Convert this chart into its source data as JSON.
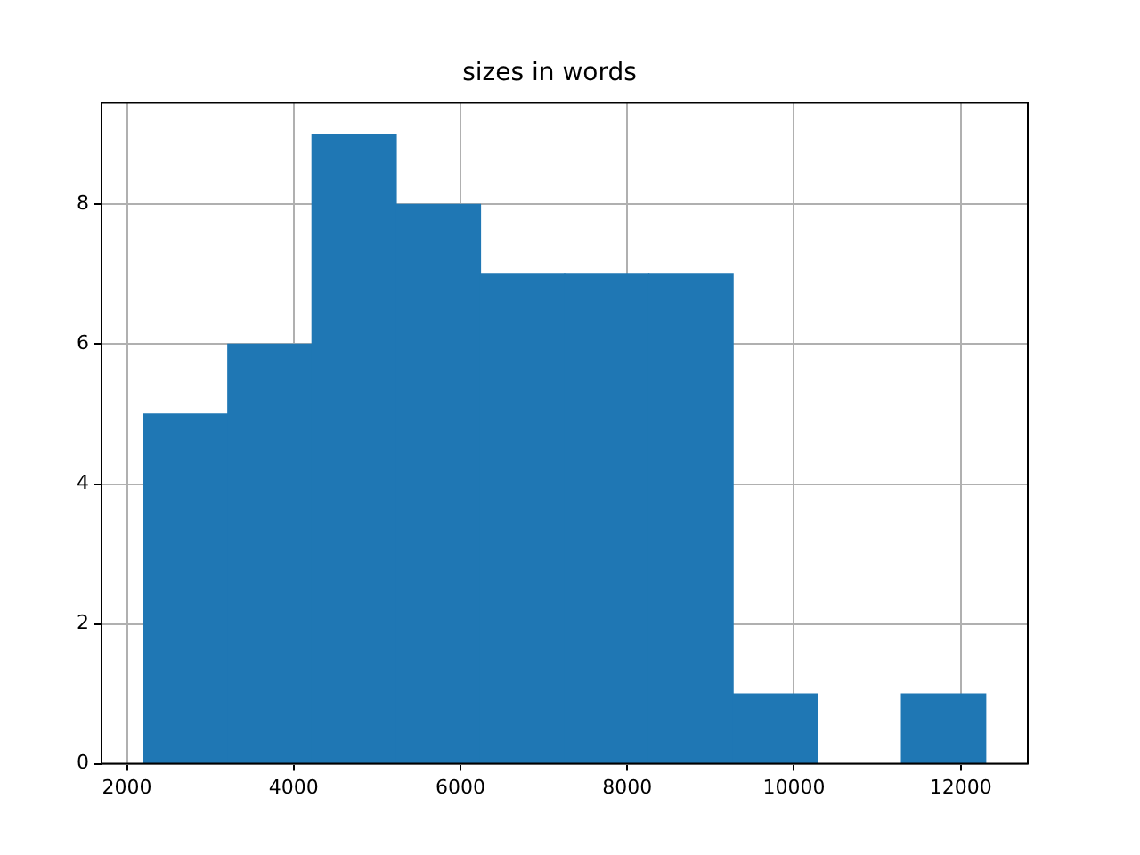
{
  "chart_data": {
    "type": "histogram",
    "title": "sizes in words",
    "bins": [
      2200,
      3210,
      4220,
      5230,
      6240,
      7250,
      8260,
      9270,
      10280,
      11290,
      12300
    ],
    "values": [
      5,
      6,
      9,
      8,
      7,
      7,
      7,
      1,
      0,
      1
    ],
    "color": "#1f77b4",
    "xlim": [
      1695,
      12805
    ],
    "xticks": [
      2000,
      4000,
      6000,
      8000,
      10000,
      12000
    ],
    "ylim": [
      0,
      9.45
    ],
    "yticks": [
      0,
      2,
      4,
      6,
      8
    ],
    "grid": true,
    "legend": false
  }
}
